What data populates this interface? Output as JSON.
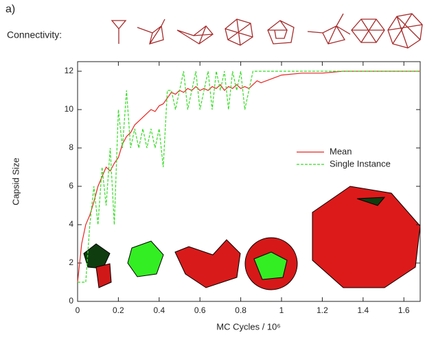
{
  "chart_data": {
    "type": "line",
    "panel_label": "a)",
    "connectivity_label": "Connectivity:",
    "xlabel": "MC Cycles / 10⁶",
    "ylabel": "Capsid Size",
    "x": [
      0,
      0.02,
      0.04,
      0.06,
      0.08,
      0.1,
      0.12,
      0.14,
      0.16,
      0.18,
      0.2,
      0.22,
      0.24,
      0.26,
      0.28,
      0.3,
      0.32,
      0.34,
      0.36,
      0.38,
      0.4,
      0.42,
      0.44,
      0.46,
      0.48,
      0.5,
      0.52,
      0.54,
      0.56,
      0.58,
      0.6,
      0.62,
      0.64,
      0.66,
      0.68,
      0.7,
      0.72,
      0.74,
      0.76,
      0.78,
      0.8,
      0.82,
      0.84,
      0.86,
      0.88,
      0.9,
      0.95,
      1.0,
      1.1,
      1.2,
      1.3,
      1.4,
      1.5,
      1.6,
      1.68
    ],
    "series": [
      {
        "name": "Mean",
        "color": "#e8231f",
        "dash": false,
        "values": [
          1,
          3,
          4,
          4.5,
          5.2,
          6,
          6.5,
          7,
          6.8,
          7.2,
          7.5,
          8.2,
          8.6,
          8.8,
          9.2,
          9.4,
          9.6,
          9.8,
          10,
          9.9,
          10.2,
          10.3,
          10.6,
          10.9,
          10.8,
          11,
          10.9,
          11.1,
          11,
          11.2,
          11,
          11.1,
          11,
          11.2,
          11.1,
          11.3,
          11,
          11.2,
          11.1,
          11.3,
          11.1,
          11.2,
          11.1,
          11.3,
          11.5,
          11.4,
          11.6,
          11.8,
          11.9,
          11.9,
          12,
          12,
          12,
          12,
          12
        ]
      },
      {
        "name": "Single Instance",
        "color": "#33dd22",
        "dash": true,
        "values": [
          1,
          1,
          1,
          4,
          6,
          4,
          7,
          5,
          8,
          4,
          10,
          8,
          11,
          8,
          9,
          8,
          9,
          8,
          9,
          8,
          9,
          7,
          11,
          11,
          10,
          11,
          12,
          10,
          11,
          12,
          10,
          11,
          12,
          10,
          12,
          11,
          12,
          10,
          12,
          11,
          12,
          10,
          11,
          12,
          12,
          12,
          12,
          12,
          12,
          12,
          12,
          12,
          12,
          12,
          12
        ]
      }
    ],
    "xlim": [
      0,
      1.68
    ],
    "xticks": [
      0,
      0.2,
      0.4,
      0.6,
      0.8,
      1,
      1.2,
      1.4,
      1.6
    ],
    "ylim": [
      0,
      12.5
    ],
    "yticks": [
      0,
      2,
      4,
      6,
      8,
      10,
      12
    ],
    "legend": "right"
  }
}
